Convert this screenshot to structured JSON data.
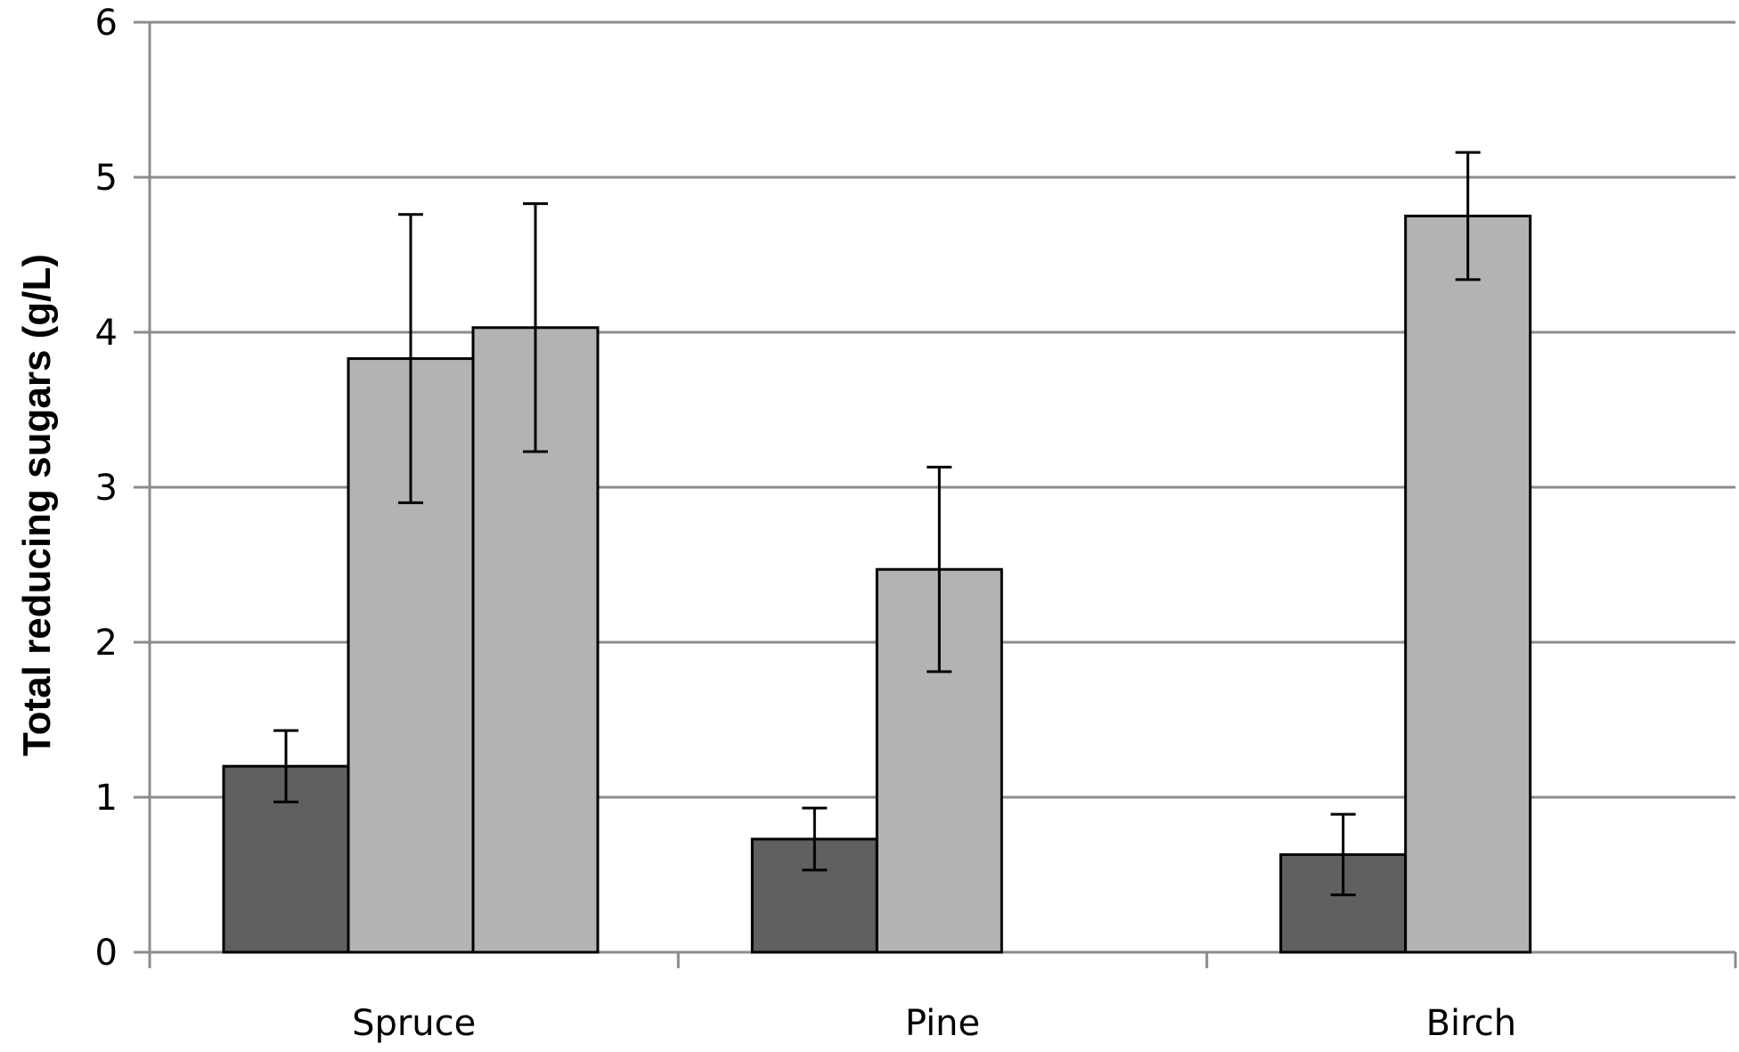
{
  "chart_data": {
    "type": "bar",
    "title": "",
    "xlabel": "",
    "ylabel": "Total reducing sugars  (g/L)",
    "ylim": [
      0,
      6
    ],
    "yticks": [
      0,
      1,
      2,
      3,
      4,
      5,
      6
    ],
    "grid": true,
    "legend": "none",
    "categories": [
      "Spruce",
      "Pine",
      "Birch"
    ],
    "groups": [
      {
        "category": "Spruce",
        "bars": [
          {
            "value": 1.2,
            "error": 0.23,
            "color": "#606060"
          },
          {
            "value": 3.83,
            "error": 0.93,
            "color": "#b3b3b3"
          },
          {
            "value": 4.03,
            "error": 0.8,
            "color": "#b3b3b3"
          }
        ]
      },
      {
        "category": "Pine",
        "bars": [
          {
            "value": 0.73,
            "error": 0.2,
            "color": "#606060"
          },
          {
            "value": 2.47,
            "error": 0.66,
            "color": "#b3b3b3"
          }
        ]
      },
      {
        "category": "Birch",
        "bars": [
          {
            "value": 0.63,
            "error": 0.26,
            "color": "#606060"
          },
          {
            "value": 4.75,
            "error": 0.41,
            "color": "#b3b3b3"
          }
        ]
      }
    ],
    "colors": {
      "dark": "#606060",
      "light": "#b3b3b3",
      "grid": "#8c8c8c",
      "axis": "#8c8c8c"
    }
  }
}
